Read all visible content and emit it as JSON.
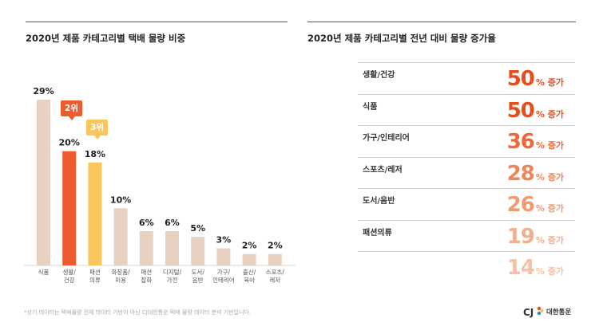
{
  "chart_data": [
    {
      "type": "bar",
      "title": "2020년 제품 카테고리별 택배 물량 비중",
      "categories": [
        "식품",
        "생활/건강",
        "패션의류",
        "화장품/미용",
        "패션잡화",
        "디지털/가전",
        "도서/음반",
        "가구/인테리어",
        "출산/육아",
        "스포츠/레저"
      ],
      "category_lines": [
        [
          "식품"
        ],
        [
          "생활/",
          "건강"
        ],
        [
          "패션",
          "의류"
        ],
        [
          "화장품/",
          "미용"
        ],
        [
          "패션",
          "잡화"
        ],
        [
          "디지털/",
          "가전"
        ],
        [
          "도서/",
          "음반"
        ],
        [
          "가구/",
          "인테리어"
        ],
        [
          "출산/",
          "육아"
        ],
        [
          "스포츠/",
          "레저"
        ]
      ],
      "values": [
        29,
        20,
        18,
        10,
        6,
        6,
        5,
        3,
        2,
        2
      ],
      "value_labels": [
        "29%",
        "20%",
        "18%",
        "10%",
        "6%",
        "6%",
        "5%",
        "3%",
        "2%",
        "2%"
      ],
      "ylim": [
        0,
        30
      ],
      "annotations": [
        {
          "category": "생활/건강",
          "text": "2위"
        },
        {
          "category": "패션의류",
          "text": "3위"
        }
      ]
    },
    {
      "type": "table",
      "title": "2020년 제품 카테고리별 전년 대비 물량 증가율",
      "rows": [
        {
          "label": "생활/건강",
          "value": 50,
          "unit": "% 증가"
        },
        {
          "label": "식품",
          "value": 50,
          "unit": "% 증가"
        },
        {
          "label": "가구/인테리어",
          "value": 36,
          "unit": "% 증가"
        },
        {
          "label": "스포츠/레저",
          "value": 28,
          "unit": "% 증가"
        },
        {
          "label": "도서/음반",
          "value": 26,
          "unit": "% 증가"
        },
        {
          "label": "패션의류",
          "value": 19,
          "unit": "% 증가"
        },
        {
          "label": "",
          "value": 14,
          "unit": "% 증가"
        }
      ]
    }
  ],
  "colors": {
    "bar_default": "#e8d1c3",
    "bar_rank2": "#ee5b2e",
    "bar_rank3": "#f8c65c",
    "growth_gradient": [
      "#e84e1b",
      "#e84e1b",
      "#ec6a3a",
      "#ef8458",
      "#f19a72",
      "#f3ae8c",
      "#f5c0a4"
    ]
  },
  "labels": {
    "rank2": "2위",
    "rank3": "3위"
  },
  "footnote": "*상기 데이터는 택배물량 전체 데이터 기반이 아닌 CJ대한통운 택배 물량 데이터 분석 기반입니다.",
  "logo": {
    "text": "대한통운",
    "mark": "CJ"
  }
}
